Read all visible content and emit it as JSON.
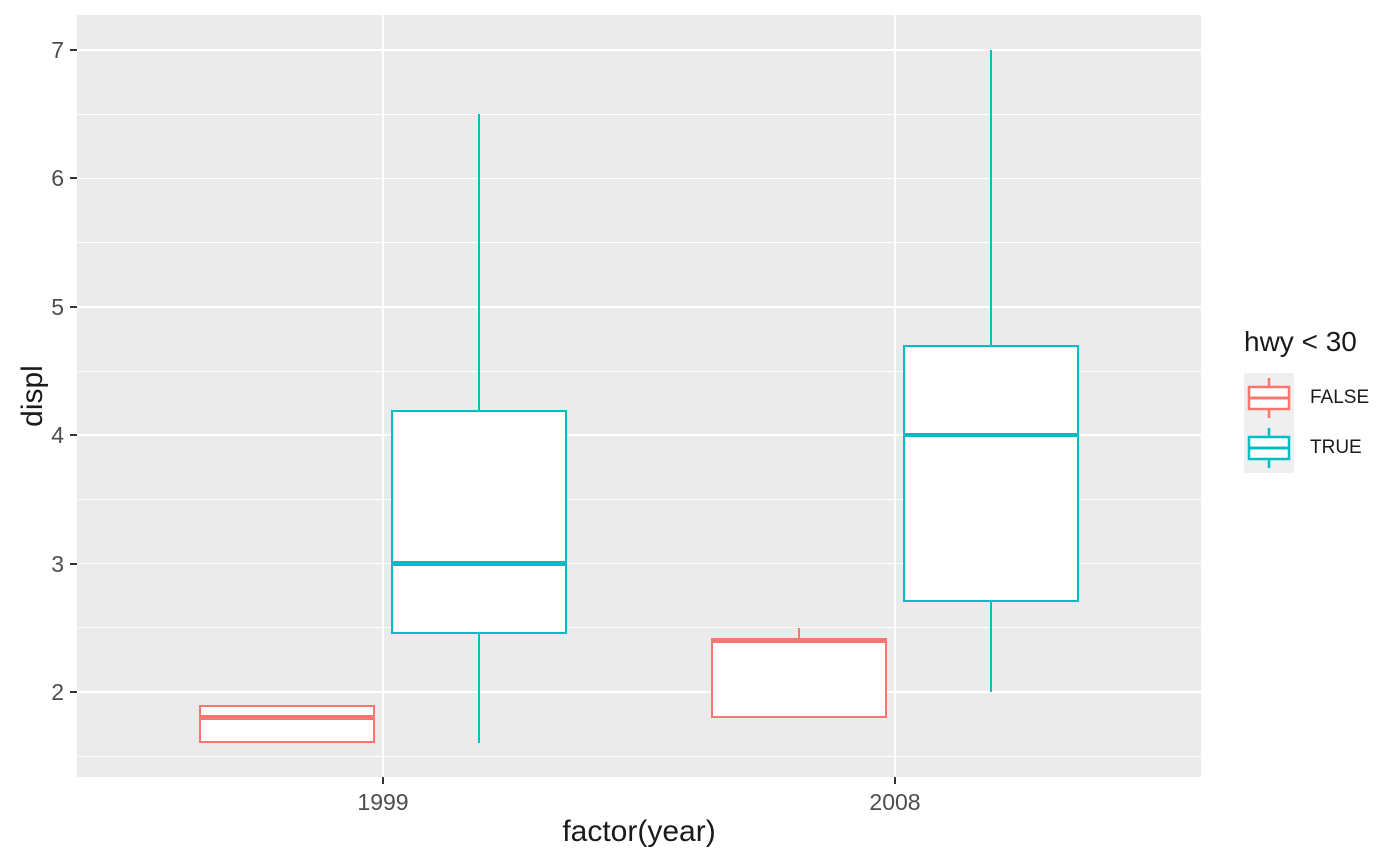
{
  "chart_data": {
    "type": "boxplot",
    "title": "",
    "xlabel": "factor(year)",
    "ylabel": "displ",
    "categories": [
      "1999",
      "2008"
    ],
    "y_ticks": [
      2,
      3,
      4,
      5,
      6,
      7
    ],
    "y_minor_ticks": [
      1.5,
      2.5,
      3.5,
      4.5,
      5.5,
      6.5
    ],
    "ylim": [
      1.34,
      7.27
    ],
    "grid": "on",
    "legend_position": "right",
    "legend": {
      "title": "hwy < 30",
      "entries": [
        {
          "label": "FALSE",
          "color": "#F8766D"
        },
        {
          "label": "TRUE",
          "color": "#00BFC4"
        }
      ]
    },
    "series": [
      {
        "name": "FALSE",
        "color": "#F8766D",
        "boxes": [
          {
            "category": "1999",
            "min": 1.6,
            "q1": 1.6,
            "median": 1.8,
            "q3": 1.9,
            "max": 1.9
          },
          {
            "category": "2008",
            "min": 1.8,
            "q1": 1.8,
            "median": 2.4,
            "q3": 2.4,
            "max": 2.5
          }
        ]
      },
      {
        "name": "TRUE",
        "color": "#00BFC4",
        "boxes": [
          {
            "category": "1999",
            "min": 1.6,
            "q1": 2.45,
            "median": 3.0,
            "q3": 4.2,
            "max": 6.5
          },
          {
            "category": "2008",
            "min": 2.0,
            "q1": 2.7,
            "median": 4.0,
            "q3": 4.7,
            "max": 7.0
          }
        ]
      }
    ],
    "colors": {
      "panel_background": "#EBEBEB",
      "gridline": "#FFFFFF",
      "tick_text": "#4D4D4D",
      "axis_title_text": "#1A1A1A",
      "tick_mark": "#333333",
      "legend_key_background": "#EFEFEF"
    }
  }
}
